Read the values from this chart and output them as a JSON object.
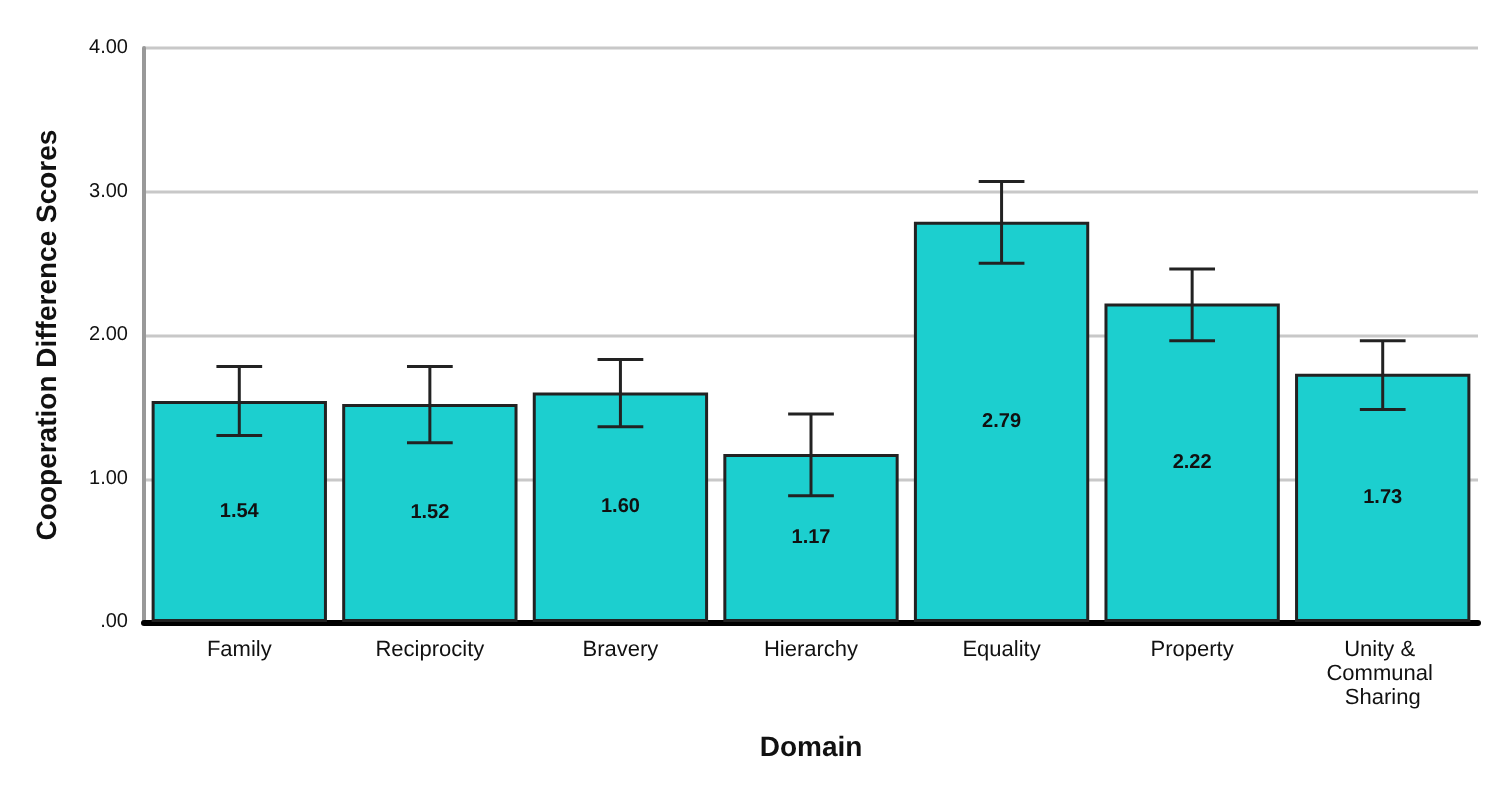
{
  "chart_data": {
    "type": "bar",
    "xlabel": "Domain",
    "ylabel": "Cooperation Difference Scores",
    "categories": [
      "Family",
      "Reciprocity",
      "Bravery",
      "Hierarchy",
      "Equality",
      "Property",
      "Unity & Communal Sharing"
    ],
    "values": [
      1.54,
      1.52,
      1.6,
      1.17,
      2.79,
      2.22,
      1.73
    ],
    "value_labels": [
      "1.54",
      "1.52",
      "1.60",
      "1.17",
      "2.79",
      "2.22",
      "1.73"
    ],
    "errors": [
      [
        1.3,
        1.78
      ],
      [
        1.25,
        1.78
      ],
      [
        1.36,
        1.83
      ],
      [
        0.88,
        1.45
      ],
      [
        2.5,
        3.07
      ],
      [
        1.96,
        2.46
      ],
      [
        1.48,
        1.96
      ]
    ],
    "color": "#1ccfcf",
    "ylim": [
      0,
      4
    ],
    "yticks": [
      {
        "value": 0,
        "label": ".00"
      },
      {
        "value": 1,
        "label": "1.00"
      },
      {
        "value": 2,
        "label": "2.00"
      },
      {
        "value": 3,
        "label": "3.00"
      },
      {
        "value": 4,
        "label": "4.00"
      }
    ],
    "grid": "y"
  }
}
